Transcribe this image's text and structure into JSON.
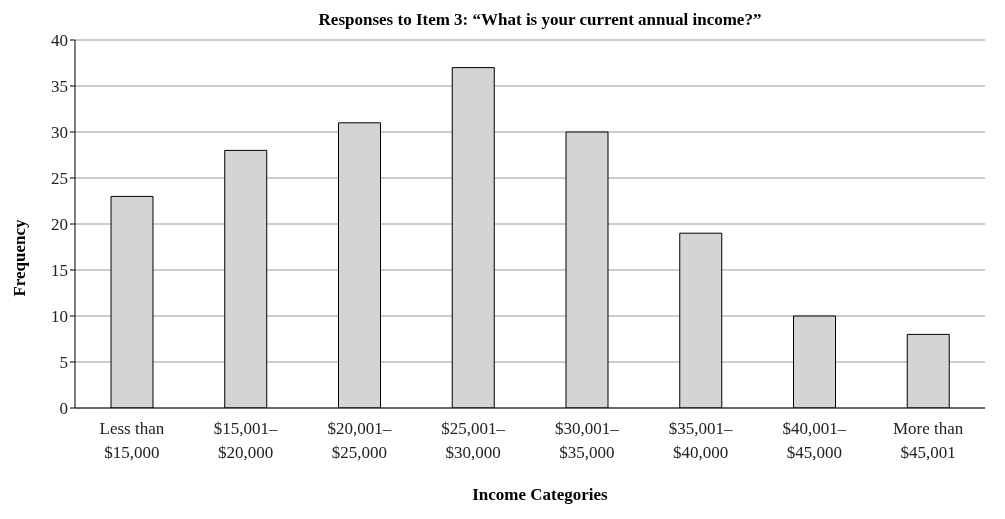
{
  "chart_data": {
    "type": "bar",
    "title": "Responses to Item 3: “What is your current annual income?”",
    "xlabel": "Income Categories",
    "ylabel": "Frequency",
    "categories": [
      "Less than\n$15,000",
      "$15,001–\n$20,000",
      "$20,001–\n$25,000",
      "$25,001–\n$30,000",
      "$30,001–\n$35,000",
      "$35,001–\n$40,000",
      "$40,001–\n$45,000",
      "More than\n$45,001"
    ],
    "values": [
      23,
      28,
      31,
      37,
      30,
      19,
      10,
      8
    ],
    "color": "#d3d4d6",
    "ylim": [
      0,
      40
    ],
    "yticks": [
      0,
      5,
      10,
      15,
      20,
      25,
      30,
      35,
      40
    ],
    "grid": "y"
  }
}
